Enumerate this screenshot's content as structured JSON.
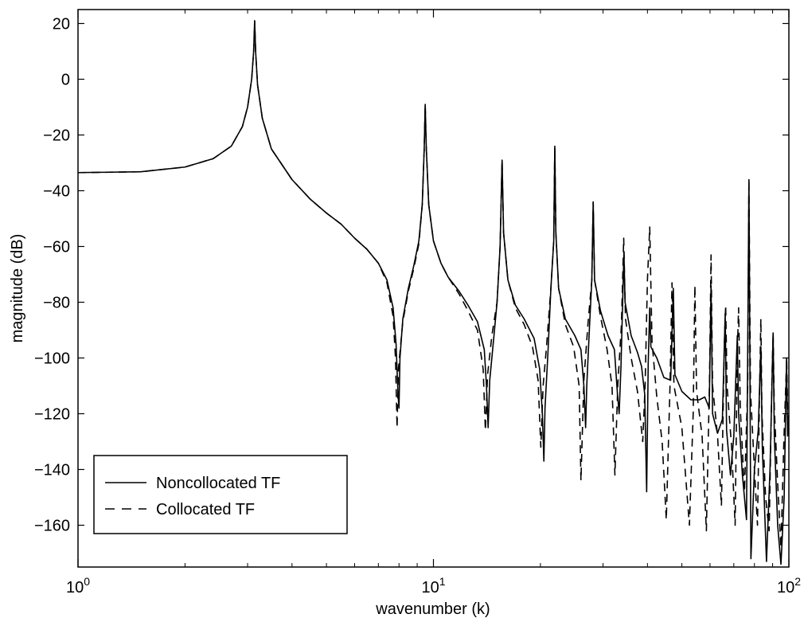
{
  "chart_data": {
    "type": "line",
    "title": "",
    "xlabel": "wavenumber (k)",
    "ylabel": "magnitude (dB)",
    "x_scale": "log",
    "xlim": [
      1,
      100
    ],
    "ylim": [
      -175,
      25
    ],
    "x_ticks": [
      {
        "value": 1,
        "base": "10",
        "exp": "0"
      },
      {
        "value": 10,
        "base": "10",
        "exp": "1"
      },
      {
        "value": 100,
        "base": "10",
        "exp": "2"
      }
    ],
    "y_ticks": [
      20,
      0,
      -20,
      -40,
      -60,
      -80,
      -100,
      -120,
      -140,
      -160
    ],
    "grid": false,
    "legend_position": "bottom-left",
    "series": [
      {
        "name": "Noncollocated TF",
        "style": "solid",
        "color": "#000000",
        "points": [
          [
            1.0,
            -33.5
          ],
          [
            1.5,
            -33.2
          ],
          [
            2.0,
            -31.5
          ],
          [
            2.4,
            -28.5
          ],
          [
            2.7,
            -24
          ],
          [
            2.9,
            -17
          ],
          [
            3.0,
            -10
          ],
          [
            3.08,
            0
          ],
          [
            3.12,
            10
          ],
          [
            3.14,
            21
          ],
          [
            3.16,
            10
          ],
          [
            3.2,
            -2
          ],
          [
            3.3,
            -14
          ],
          [
            3.5,
            -25
          ],
          [
            4.0,
            -36
          ],
          [
            4.5,
            -43
          ],
          [
            5.0,
            -48
          ],
          [
            5.5,
            -52
          ],
          [
            6.0,
            -57
          ],
          [
            6.5,
            -61
          ],
          [
            7.0,
            -66
          ],
          [
            7.4,
            -72
          ],
          [
            7.7,
            -82
          ],
          [
            7.85,
            -95
          ],
          [
            7.95,
            -113
          ],
          [
            8.0,
            -118
          ],
          [
            8.05,
            -100
          ],
          [
            8.2,
            -86
          ],
          [
            8.5,
            -75
          ],
          [
            8.8,
            -67
          ],
          [
            9.1,
            -58
          ],
          [
            9.3,
            -45
          ],
          [
            9.42,
            -25
          ],
          [
            9.48,
            -9
          ],
          [
            9.55,
            -25
          ],
          [
            9.7,
            -45
          ],
          [
            10.0,
            -58
          ],
          [
            10.5,
            -66
          ],
          [
            11.0,
            -71
          ],
          [
            11.8,
            -76
          ],
          [
            12.5,
            -81
          ],
          [
            13.3,
            -87
          ],
          [
            13.9,
            -97
          ],
          [
            14.1,
            -110
          ],
          [
            14.25,
            -125
          ],
          [
            14.4,
            -108
          ],
          [
            14.8,
            -92
          ],
          [
            15.1,
            -80
          ],
          [
            15.4,
            -60
          ],
          [
            15.6,
            -29
          ],
          [
            15.75,
            -55
          ],
          [
            16.2,
            -72
          ],
          [
            17.0,
            -81
          ],
          [
            18.0,
            -86
          ],
          [
            19.2,
            -93
          ],
          [
            19.9,
            -104
          ],
          [
            20.25,
            -120
          ],
          [
            20.45,
            -137
          ],
          [
            20.6,
            -118
          ],
          [
            21.0,
            -98
          ],
          [
            21.4,
            -75
          ],
          [
            21.8,
            -58
          ],
          [
            21.95,
            -24
          ],
          [
            22.1,
            -55
          ],
          [
            22.5,
            -75
          ],
          [
            23.5,
            -86
          ],
          [
            25.0,
            -92
          ],
          [
            26.0,
            -97
          ],
          [
            26.5,
            -110
          ],
          [
            26.8,
            -125
          ],
          [
            27.0,
            -110
          ],
          [
            27.5,
            -88
          ],
          [
            27.9,
            -72
          ],
          [
            28.15,
            -44
          ],
          [
            28.4,
            -72
          ],
          [
            29.5,
            -83
          ],
          [
            31.0,
            -92
          ],
          [
            32.3,
            -97
          ],
          [
            32.9,
            -112
          ],
          [
            33.3,
            -120
          ],
          [
            33.7,
            -103
          ],
          [
            34.1,
            -78
          ],
          [
            34.35,
            -62
          ],
          [
            34.6,
            -80
          ],
          [
            36.0,
            -92
          ],
          [
            37.5,
            -98
          ],
          [
            38.5,
            -103
          ],
          [
            39.3,
            -113
          ],
          [
            39.8,
            -148
          ],
          [
            40.2,
            -102
          ],
          [
            40.6,
            -82
          ],
          [
            40.9,
            -96
          ],
          [
            42.5,
            -100
          ],
          [
            44.5,
            -107
          ],
          [
            46.5,
            -108
          ],
          [
            47.3,
            -75
          ],
          [
            47.8,
            -106
          ],
          [
            50,
            -112
          ],
          [
            53,
            -115
          ],
          [
            56,
            -115
          ],
          [
            58,
            -114
          ],
          [
            59.7,
            -118
          ],
          [
            60.4,
            -74
          ],
          [
            61.0,
            -120
          ],
          [
            63.0,
            -127
          ],
          [
            65.0,
            -122
          ],
          [
            66.2,
            -84
          ],
          [
            66.8,
            -126
          ],
          [
            68.5,
            -142
          ],
          [
            70.0,
            -128
          ],
          [
            71.6,
            -92
          ],
          [
            72.2,
            -120
          ],
          [
            74,
            -142
          ],
          [
            76,
            -158
          ],
          [
            77.2,
            -36
          ],
          [
            78.2,
            -172
          ],
          [
            80,
            -140
          ],
          [
            82,
            -126
          ],
          [
            83.4,
            -96
          ],
          [
            84.2,
            -132
          ],
          [
            86.5,
            -173
          ],
          [
            88.5,
            -140
          ],
          [
            90.3,
            -91
          ],
          [
            91.0,
            -128
          ],
          [
            93.0,
            -160
          ],
          [
            95.0,
            -174
          ],
          [
            97.0,
            -150
          ],
          [
            98.5,
            -100
          ],
          [
            99.2,
            -128
          ],
          [
            100.0,
            -122
          ]
        ]
      },
      {
        "name": "Collocated TF",
        "style": "dashed",
        "color": "#000000",
        "points": [
          [
            1.0,
            -33.5
          ],
          [
            1.5,
            -33.2
          ],
          [
            2.0,
            -31.5
          ],
          [
            2.4,
            -28.5
          ],
          [
            2.7,
            -24
          ],
          [
            2.9,
            -17
          ],
          [
            3.0,
            -10
          ],
          [
            3.08,
            0
          ],
          [
            3.12,
            10
          ],
          [
            3.14,
            21
          ],
          [
            3.16,
            10
          ],
          [
            3.2,
            -2
          ],
          [
            3.3,
            -14
          ],
          [
            3.5,
            -25
          ],
          [
            4.0,
            -36
          ],
          [
            4.5,
            -43
          ],
          [
            5.0,
            -48
          ],
          [
            5.5,
            -52
          ],
          [
            6.0,
            -57
          ],
          [
            6.5,
            -61
          ],
          [
            7.0,
            -66
          ],
          [
            7.4,
            -73
          ],
          [
            7.7,
            -85
          ],
          [
            7.82,
            -100
          ],
          [
            7.9,
            -125
          ],
          [
            7.97,
            -104
          ],
          [
            8.2,
            -87
          ],
          [
            8.5,
            -76
          ],
          [
            8.8,
            -68
          ],
          [
            9.1,
            -59
          ],
          [
            9.3,
            -45
          ],
          [
            9.42,
            -25
          ],
          [
            9.48,
            -9
          ],
          [
            9.55,
            -25
          ],
          [
            9.7,
            -45
          ],
          [
            10.0,
            -58
          ],
          [
            10.5,
            -66
          ],
          [
            11.0,
            -71
          ],
          [
            11.8,
            -77
          ],
          [
            12.5,
            -83
          ],
          [
            13.3,
            -90
          ],
          [
            13.8,
            -104
          ],
          [
            14.0,
            -126
          ],
          [
            14.2,
            -106
          ],
          [
            14.6,
            -92
          ],
          [
            15.1,
            -80
          ],
          [
            15.4,
            -60
          ],
          [
            15.6,
            -29
          ],
          [
            15.75,
            -55
          ],
          [
            16.2,
            -72
          ],
          [
            17.0,
            -82
          ],
          [
            18.0,
            -88
          ],
          [
            19.0,
            -96
          ],
          [
            19.7,
            -108
          ],
          [
            20.05,
            -132
          ],
          [
            20.35,
            -110
          ],
          [
            20.8,
            -96
          ],
          [
            21.4,
            -75
          ],
          [
            21.8,
            -58
          ],
          [
            21.95,
            -24
          ],
          [
            22.1,
            -55
          ],
          [
            22.5,
            -75
          ],
          [
            23.5,
            -88
          ],
          [
            24.8,
            -96
          ],
          [
            25.7,
            -110
          ],
          [
            26.0,
            -144
          ],
          [
            26.5,
            -108
          ],
          [
            27.2,
            -88
          ],
          [
            27.9,
            -72
          ],
          [
            28.15,
            -44
          ],
          [
            28.4,
            -72
          ],
          [
            29.5,
            -85
          ],
          [
            30.8,
            -97
          ],
          [
            31.8,
            -110
          ],
          [
            32.4,
            -142
          ],
          [
            33.0,
            -110
          ],
          [
            33.8,
            -88
          ],
          [
            34.3,
            -57
          ],
          [
            34.7,
            -86
          ],
          [
            36.0,
            -100
          ],
          [
            37.5,
            -112
          ],
          [
            38.8,
            -130
          ],
          [
            39.4,
            -110
          ],
          [
            40.0,
            -72
          ],
          [
            40.6,
            -53
          ],
          [
            41.2,
            -94
          ],
          [
            42.5,
            -114
          ],
          [
            44.0,
            -130
          ],
          [
            45.2,
            -158
          ],
          [
            46.3,
            -110
          ],
          [
            46.9,
            -73
          ],
          [
            47.5,
            -110
          ],
          [
            50,
            -125
          ],
          [
            52.5,
            -160
          ],
          [
            53.8,
            -120
          ],
          [
            54.4,
            -74
          ],
          [
            55.0,
            -112
          ],
          [
            57,
            -128
          ],
          [
            58.6,
            -162
          ],
          [
            59.8,
            -108
          ],
          [
            60.4,
            -63
          ],
          [
            61.0,
            -110
          ],
          [
            63.0,
            -128
          ],
          [
            64.6,
            -153
          ],
          [
            65.8,
            -96
          ],
          [
            66.4,
            -81
          ],
          [
            67.0,
            -110
          ],
          [
            69.0,
            -132
          ],
          [
            70.6,
            -160
          ],
          [
            71.6,
            -98
          ],
          [
            72.2,
            -82
          ],
          [
            73.0,
            -118
          ],
          [
            75,
            -148
          ],
          [
            76.6,
            -110
          ],
          [
            77.2,
            -36
          ],
          [
            78,
            -112
          ],
          [
            80,
            -140
          ],
          [
            81.6,
            -160
          ],
          [
            82.8,
            -108
          ],
          [
            83.4,
            -86
          ],
          [
            84.0,
            -120
          ],
          [
            86.0,
            -150
          ],
          [
            88.0,
            -162
          ],
          [
            89.6,
            -108
          ],
          [
            90.3,
            -91
          ],
          [
            91.0,
            -118
          ],
          [
            93.0,
            -145
          ],
          [
            95.0,
            -168
          ],
          [
            96.8,
            -130
          ],
          [
            98.0,
            -110
          ],
          [
            98.6,
            -100
          ],
          [
            99.3,
            -122
          ],
          [
            100.0,
            -120
          ]
        ]
      }
    ]
  }
}
